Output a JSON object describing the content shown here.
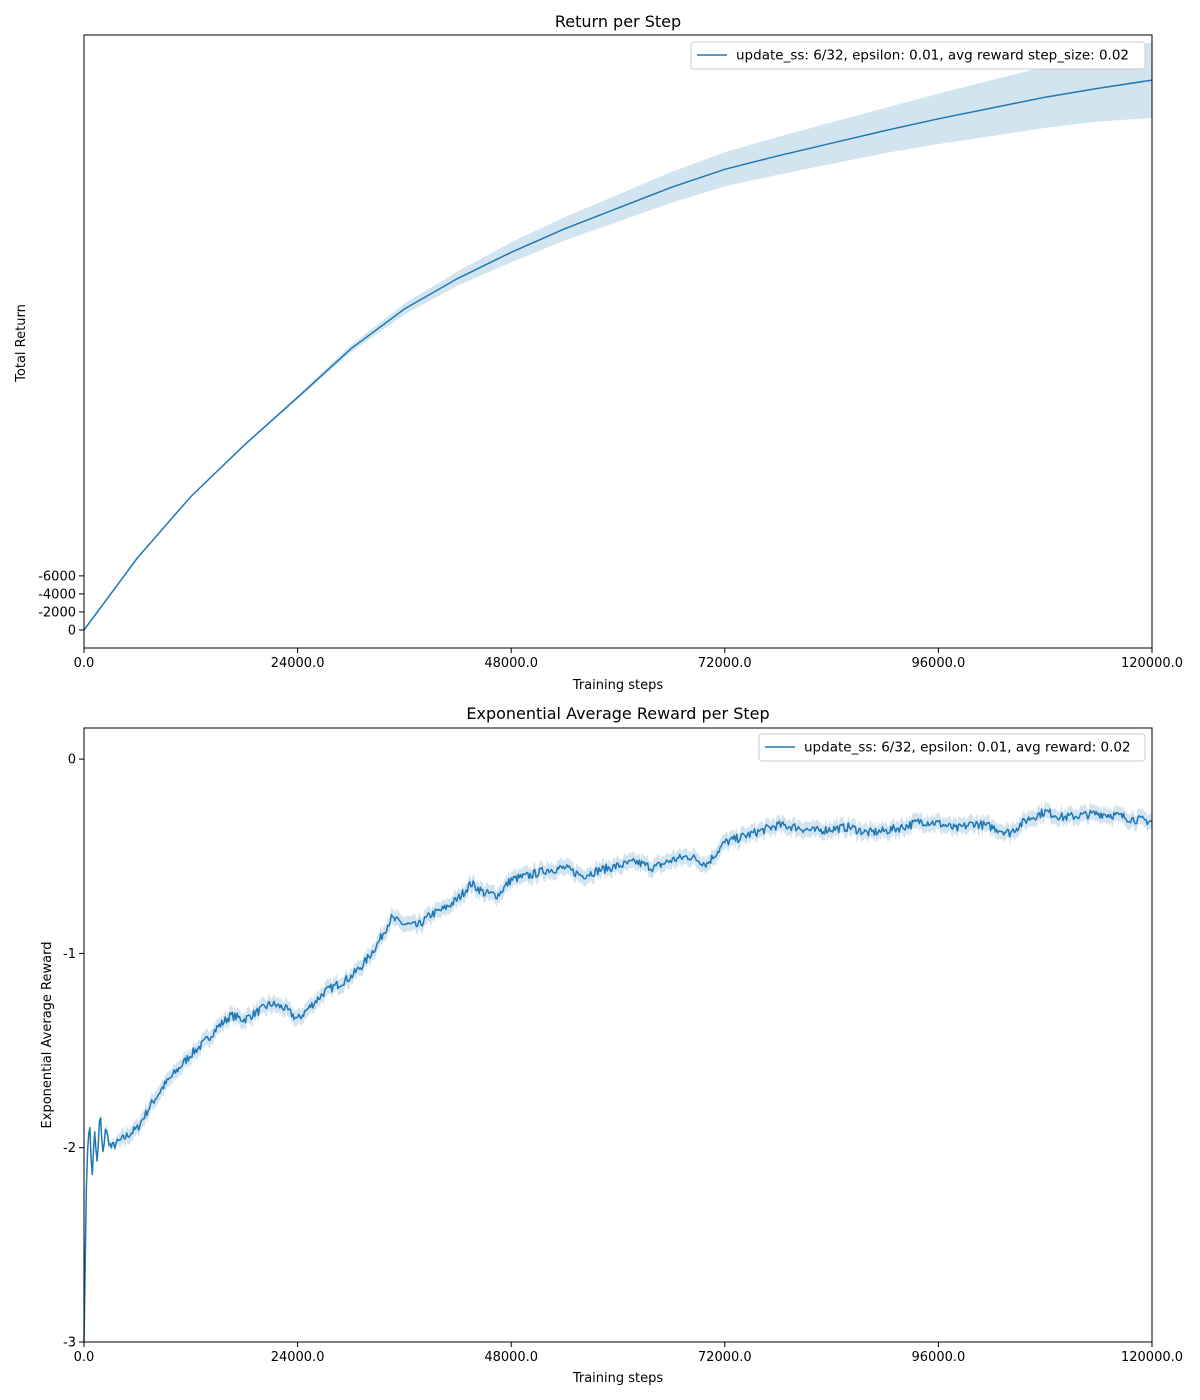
{
  "accent_color": "#1f77b4",
  "band_color": "#c6dbef",
  "chart_data": [
    {
      "type": "line",
      "title": "Return per Step",
      "xlabel": "Training steps",
      "ylabel": "Total Return",
      "xlim": [
        0,
        120000
      ],
      "ylim": [
        2000,
        -66000
      ],
      "x_ticks": [
        0,
        24000,
        48000,
        72000,
        96000,
        120000
      ],
      "x_tick_labels": [
        "0.0",
        "24000.0",
        "48000.0",
        "72000.0",
        "96000.0",
        "120000.0"
      ],
      "y_ticks": [
        0,
        -2000,
        -4000,
        -6000
      ],
      "y_tick_labels": [
        "0",
        "-2000",
        "-4000",
        "-6000"
      ],
      "grid": false,
      "legend_position": "top-right",
      "series": [
        {
          "name": "update_ss: 6/32, epsilon: 0.01, avg reward step_size: 0.02",
          "color": "#1f77b4",
          "x": [
            0,
            6000,
            12000,
            18000,
            24000,
            30000,
            36000,
            42000,
            48000,
            54000,
            60000,
            66000,
            72000,
            78000,
            84000,
            90000,
            96000,
            102000,
            108000,
            114000,
            120000
          ],
          "y": [
            0,
            -8000,
            -14800,
            -20500,
            -25800,
            -31200,
            -35600,
            -39000,
            -41900,
            -44500,
            -46800,
            -49100,
            -51100,
            -52600,
            -54000,
            -55400,
            -56700,
            -57900,
            -59100,
            -60100,
            -61000
          ],
          "lower": [
            0,
            -8000,
            -14800,
            -20600,
            -26000,
            -31600,
            -36200,
            -39800,
            -43000,
            -45800,
            -48300,
            -50800,
            -53000,
            -54700,
            -56300,
            -57900,
            -59500,
            -61000,
            -62500,
            -63800,
            -65200
          ],
          "upper": [
            0,
            -8000,
            -14800,
            -20400,
            -25600,
            -30800,
            -35000,
            -38200,
            -40800,
            -43200,
            -45300,
            -47400,
            -49200,
            -50500,
            -51700,
            -52900,
            -53900,
            -54800,
            -55700,
            -56400,
            -56800
          ]
        }
      ]
    },
    {
      "type": "line",
      "title": "Exponential Average Reward per Step",
      "xlabel": "Training steps",
      "ylabel": "Exponential Average Reward",
      "xlim": [
        0,
        120000
      ],
      "ylim": [
        -3,
        0.16
      ],
      "x_ticks": [
        0,
        24000,
        48000,
        72000,
        96000,
        120000
      ],
      "x_tick_labels": [
        "0.0",
        "24000.0",
        "48000.0",
        "72000.0",
        "96000.0",
        "120000.0"
      ],
      "y_ticks": [
        0,
        -1,
        -2,
        -3
      ],
      "y_tick_labels": [
        "0",
        "-1",
        "-2",
        "-3"
      ],
      "grid": false,
      "legend_position": "top-right",
      "series": [
        {
          "name": "update_ss: 6/32, epsilon: 0.01, avg reward: 0.02",
          "color": "#1f77b4",
          "x": [
            0,
            300,
            600,
            900,
            1200,
            1500,
            1800,
            2100,
            2400,
            3000,
            4500,
            6000,
            7500,
            9000,
            10500,
            12000,
            13500,
            15000,
            16500,
            18000,
            19500,
            21000,
            22500,
            24000,
            25500,
            27000,
            28500,
            30000,
            31500,
            33000,
            34500,
            36000,
            37500,
            39000,
            40500,
            42000,
            43500,
            45000,
            46500,
            48000,
            50000,
            52000,
            54000,
            56000,
            58000,
            60000,
            62000,
            64000,
            66000,
            68000,
            70000,
            72000,
            74000,
            76000,
            78000,
            80000,
            82000,
            84000,
            86000,
            88000,
            90000,
            92000,
            94000,
            96000,
            98000,
            100000,
            102000,
            104000,
            106000,
            108000,
            110000,
            112000,
            114000,
            116000,
            118000,
            120000
          ],
          "y": [
            -3.0,
            -2.1,
            -1.85,
            -2.15,
            -1.92,
            -2.1,
            -1.8,
            -2.05,
            -1.9,
            -2.0,
            -1.95,
            -1.9,
            -1.78,
            -1.68,
            -1.6,
            -1.52,
            -1.46,
            -1.38,
            -1.32,
            -1.34,
            -1.3,
            -1.26,
            -1.28,
            -1.34,
            -1.27,
            -1.2,
            -1.16,
            -1.12,
            -1.05,
            -0.95,
            -0.82,
            -0.85,
            -0.86,
            -0.8,
            -0.77,
            -0.72,
            -0.64,
            -0.69,
            -0.7,
            -0.62,
            -0.6,
            -0.57,
            -0.56,
            -0.6,
            -0.57,
            -0.55,
            -0.53,
            -0.56,
            -0.52,
            -0.5,
            -0.54,
            -0.43,
            -0.4,
            -0.37,
            -0.34,
            -0.35,
            -0.37,
            -0.36,
            -0.35,
            -0.38,
            -0.37,
            -0.35,
            -0.32,
            -0.33,
            -0.36,
            -0.33,
            -0.35,
            -0.38,
            -0.31,
            -0.27,
            -0.3,
            -0.29,
            -0.28,
            -0.29,
            -0.31,
            -0.32
          ],
          "band_halfwidth": 0.04
        }
      ]
    }
  ]
}
